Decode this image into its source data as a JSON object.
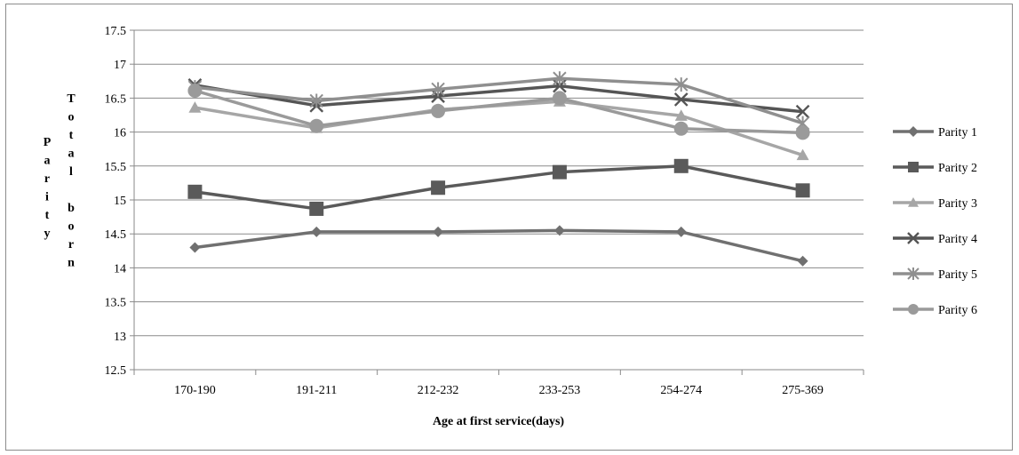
{
  "chart_data": {
    "type": "line",
    "xlabel": "Age at first service(days)",
    "ylabel_parity": "Parity",
    "ylabel_total": "Total born",
    "categories": [
      "170-190",
      "191-211",
      "212-232",
      "233-253",
      "254-274",
      "275-369"
    ],
    "ylim": [
      12.5,
      17.5
    ],
    "yticks": [
      12.5,
      13,
      13.5,
      14,
      14.5,
      15,
      15.5,
      16,
      16.5,
      17,
      17.5
    ],
    "ytick_labels": [
      "12.5",
      "13",
      "13.5",
      "14",
      "14.5",
      "15",
      "15.5",
      "16",
      "16.5",
      "17",
      "17.5"
    ],
    "grid": true,
    "legend": "right",
    "series": [
      {
        "name": "Parity 1",
        "values": [
          14.3,
          14.53,
          14.53,
          14.55,
          14.53,
          14.1
        ],
        "color": "#707070",
        "marker": "diamond"
      },
      {
        "name": "Parity 2",
        "values": [
          15.12,
          14.87,
          15.18,
          15.41,
          15.5,
          15.14
        ],
        "color": "#5a5a5a",
        "marker": "square"
      },
      {
        "name": "Parity 3",
        "values": [
          16.36,
          16.06,
          16.33,
          16.45,
          16.24,
          15.66
        ],
        "color": "#a6a6a6",
        "marker": "triangle"
      },
      {
        "name": "Parity 4",
        "values": [
          16.69,
          16.39,
          16.53,
          16.68,
          16.48,
          16.3
        ],
        "color": "#555555",
        "marker": "x"
      },
      {
        "name": "Parity 5",
        "values": [
          16.66,
          16.46,
          16.63,
          16.79,
          16.7,
          16.13
        ],
        "color": "#8f8f8f",
        "marker": "star"
      },
      {
        "name": "Parity 6",
        "values": [
          16.61,
          16.09,
          16.31,
          16.5,
          16.05,
          15.99
        ],
        "color": "#9a9a9a",
        "marker": "circle"
      }
    ]
  }
}
